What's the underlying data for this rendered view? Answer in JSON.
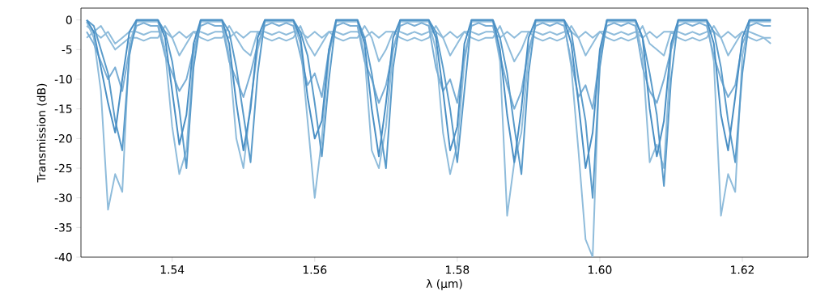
{
  "chart_data": {
    "type": "line",
    "xlabel": "λ (µm)",
    "ylabel": "Transmission (dB)",
    "xlim": [
      1.5272,
      1.6292
    ],
    "ylim": [
      -40,
      2
    ],
    "xticks": [
      1.54,
      1.56,
      1.58,
      {
        "value": 1.6,
        "label": "1.60"
      },
      1.62
    ],
    "yticks": [
      0,
      -5,
      -10,
      -15,
      -20,
      -25,
      -30,
      -35,
      -40
    ],
    "x": [
      1.528,
      1.529,
      1.53,
      1.531,
      1.532,
      1.533,
      1.534,
      1.535,
      1.536,
      1.537,
      1.538,
      1.539,
      1.54,
      1.541,
      1.542,
      1.543,
      1.544,
      1.545,
      1.546,
      1.547,
      1.548,
      1.549,
      1.55,
      1.551,
      1.552,
      1.553,
      1.554,
      1.555,
      1.556,
      1.557,
      1.558,
      1.559,
      1.56,
      1.561,
      1.562,
      1.563,
      1.564,
      1.565,
      1.566,
      1.567,
      1.568,
      1.569,
      1.57,
      1.571,
      1.572,
      1.573,
      1.574,
      1.575,
      1.576,
      1.577,
      1.578,
      1.579,
      1.58,
      1.581,
      1.582,
      1.583,
      1.584,
      1.585,
      1.586,
      1.587,
      1.588,
      1.589,
      1.59,
      1.591,
      1.592,
      1.593,
      1.594,
      1.595,
      1.596,
      1.597,
      1.598,
      1.599,
      1.6,
      1.601,
      1.602,
      1.603,
      1.604,
      1.605,
      1.606,
      1.607,
      1.608,
      1.609,
      1.61,
      1.611,
      1.612,
      1.613,
      1.614,
      1.615,
      1.616,
      1.617,
      1.618,
      1.619,
      1.62,
      1.621,
      1.622,
      1.623,
      1.624
    ],
    "series": [
      {
        "color": "#8fbcdb",
        "values": [
          -3,
          -2,
          -1,
          -3,
          -5,
          -4,
          -3,
          -3,
          -3.5,
          -3,
          -3,
          -1,
          -3,
          -6,
          -4,
          -2,
          -3,
          -3.5,
          -3,
          -3,
          -1,
          -3,
          -5,
          -6,
          -2,
          -3,
          -3.5,
          -3,
          -3.5,
          -3,
          -1,
          -4,
          -6,
          -4,
          -2,
          -3,
          -3.5,
          -3,
          -3,
          -1,
          -3,
          -7,
          -5,
          -2,
          -3,
          -3.5,
          -3,
          -3.5,
          -3,
          -1,
          -3,
          -6,
          -4,
          -2,
          -3,
          -3.5,
          -3,
          -3,
          -1,
          -4,
          -7,
          -5,
          -2,
          -3,
          -3.5,
          -3,
          -3.5,
          -3,
          -1,
          -3,
          -6,
          -4,
          -2,
          -3,
          -3.5,
          -3,
          -3.5,
          -3,
          -1,
          -4,
          -5,
          -6,
          -2,
          -3,
          -3.5,
          -3,
          -3.5,
          -3,
          -1,
          -3,
          -6,
          -4,
          -2,
          -3,
          -3.5,
          -3,
          -3
        ]
      },
      {
        "color": "#8fbcdb",
        "values": [
          -1,
          -2,
          -3,
          -2,
          -4,
          -3,
          -2,
          -2,
          -2.5,
          -2,
          -2,
          -2,
          -3,
          -2,
          -3,
          -2,
          -2,
          -2.5,
          -2,
          -2,
          -3,
          -2,
          -3,
          -2,
          -2,
          -2,
          -2.5,
          -2,
          -2.5,
          -2,
          -2,
          -3,
          -2,
          -3,
          -2,
          -2,
          -2.5,
          -2,
          -2,
          -3,
          -2,
          -3,
          -2,
          -2,
          -2,
          -2.5,
          -2,
          -2.5,
          -2,
          -2,
          -3,
          -2,
          -3,
          -2,
          -2,
          -2.5,
          -2,
          -2,
          -3,
          -2,
          -3,
          -2,
          -2,
          -2,
          -2.5,
          -2,
          -2.5,
          -2,
          -2,
          -3,
          -2,
          -3,
          -2,
          -2,
          -2.5,
          -2,
          -2.5,
          -2,
          -3,
          -2,
          -3,
          -2,
          -2,
          -2,
          -2.5,
          -2,
          -2.5,
          -2,
          -2,
          -3,
          -2,
          -3,
          -2,
          -2,
          -2.5,
          -3,
          -4
        ]
      },
      {
        "color": "#8fbcdb",
        "values": [
          -0.3,
          -3,
          -12,
          -32,
          -26,
          -29,
          -4,
          -0.3,
          -0.3,
          -0.3,
          -0.3,
          -5,
          -18,
          -26,
          -22,
          -6,
          -0.3,
          -0.3,
          -0.3,
          -0.3,
          -6,
          -20,
          -25,
          -14,
          -5,
          -0.3,
          -0.3,
          -0.3,
          -0.3,
          -0.3,
          -4,
          -17,
          -30,
          -20,
          -6,
          -0.3,
          -0.3,
          -0.3,
          -0.3,
          -6,
          -22,
          -25,
          -18,
          -5,
          -0.3,
          -0.3,
          -0.3,
          -0.3,
          -0.3,
          -5,
          -19,
          -26,
          -21,
          -7,
          -0.3,
          -0.3,
          -0.3,
          -0.3,
          -7,
          -33,
          -24,
          -19,
          -6,
          -0.3,
          -0.3,
          -0.3,
          -0.3,
          -0.3,
          -8,
          -22,
          -37,
          -40,
          -6,
          -0.3,
          -0.3,
          -0.3,
          -0.3,
          -0.3,
          -6,
          -24,
          -21,
          -25,
          -5,
          -0.3,
          -0.3,
          -0.3,
          -0.3,
          -0.3,
          -7,
          -33,
          -26,
          -29,
          -6,
          -0.3,
          -0.3,
          -0.3,
          -0.3
        ]
      },
      {
        "color": "#7aaed5",
        "values": [
          -2,
          -4,
          -7,
          -10,
          -8,
          -12,
          -5,
          -1,
          -0.5,
          -1,
          -1,
          -6,
          -9,
          -12,
          -10,
          -5,
          -1,
          -0.5,
          -1,
          -1,
          -7,
          -10,
          -13,
          -9,
          -4,
          -1,
          -0.5,
          -1,
          -0.5,
          -1,
          -6,
          -11,
          -9,
          -13,
          -5,
          -1,
          -0.5,
          -1,
          -1,
          -7,
          -10,
          -14,
          -11,
          -5,
          -1,
          -0.5,
          -1,
          -0.5,
          -1,
          -8,
          -12,
          -10,
          -14,
          -6,
          -1,
          -0.5,
          -1,
          -1,
          -6,
          -11,
          -15,
          -12,
          -5,
          -1,
          -0.5,
          -1,
          -0.5,
          -1,
          -7,
          -13,
          -11,
          -15,
          -6,
          -1,
          -0.5,
          -1,
          -0.5,
          -1,
          -8,
          -12,
          -14,
          -10,
          -5,
          -1,
          -0.5,
          -1,
          -0.5,
          -1,
          -6,
          -10,
          -13,
          -11,
          -4,
          -1,
          -0.5,
          -1,
          -1
        ]
      },
      {
        "color": "#5a9bca",
        "values": [
          0,
          -1,
          -5,
          -9,
          -17,
          -22,
          -6,
          0,
          0,
          0,
          0,
          -2,
          -7,
          -15,
          -25,
          -8,
          0,
          0,
          0,
          0,
          -2,
          -8,
          -16,
          -24,
          -9,
          0,
          0,
          0,
          0,
          0,
          -2,
          -6,
          -14,
          -23,
          -10,
          0,
          0,
          0,
          0,
          -3,
          -9,
          -17,
          -25,
          -8,
          0,
          0,
          0,
          0,
          0,
          -2,
          -8,
          -15,
          -24,
          -12,
          0,
          0,
          0,
          0,
          -3,
          -9,
          -18,
          -26,
          -9,
          0,
          0,
          0,
          0,
          0,
          -2,
          -10,
          -17,
          -30,
          -8,
          0,
          0,
          0,
          0,
          0,
          -3,
          -9,
          -16,
          -28,
          -10,
          0,
          0,
          0,
          0,
          0,
          -2,
          -8,
          -17,
          -24,
          -9,
          0,
          0,
          0,
          0
        ]
      },
      {
        "color": "#4a8fc4",
        "values": [
          0,
          -2,
          -8,
          -14,
          -19,
          -10,
          -2,
          0,
          0,
          0,
          0,
          -3,
          -12,
          -21,
          -16,
          -4,
          0,
          0,
          0,
          0,
          -4,
          -14,
          -22,
          -15,
          -3,
          0,
          0,
          0,
          0,
          0,
          -3,
          -13,
          -20,
          -17,
          -5,
          0,
          0,
          0,
          0,
          -4,
          -15,
          -23,
          -14,
          -3,
          0,
          0,
          0,
          0,
          0,
          -3,
          -12,
          -22,
          -18,
          -4,
          0,
          0,
          0,
          0,
          -5,
          -16,
          -24,
          -15,
          -3,
          0,
          0,
          0,
          0,
          0,
          -4,
          -14,
          -25,
          -19,
          -5,
          0,
          0,
          0,
          0,
          0,
          -3,
          -15,
          -23,
          -17,
          -4,
          0,
          0,
          0,
          0,
          0,
          -4,
          -16,
          -22,
          -13,
          -3,
          0,
          0,
          0,
          0
        ]
      }
    ]
  }
}
